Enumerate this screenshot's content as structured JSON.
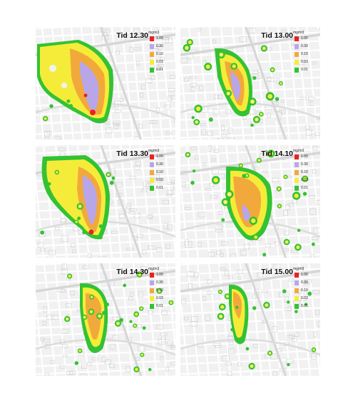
{
  "legend": {
    "unit": "mg/m3",
    "classes": [
      {
        "value": "1.00",
        "color": "#e8231f"
      },
      {
        "value": "0.30",
        "color": "#b8a6e8"
      },
      {
        "value": "0.10",
        "color": "#f2a93b"
      },
      {
        "value": "0.03",
        "color": "#f5ec3a"
      },
      {
        "value": "0.01",
        "color": "#33c233"
      }
    ]
  },
  "panels": [
    {
      "title": "Tid 12.30"
    },
    {
      "title": "Tid 13.00"
    },
    {
      "title": "Tid 13.30"
    },
    {
      "title": "Tid 14.10"
    },
    {
      "title": "Tid 14.30"
    },
    {
      "title": "Tid 15.00"
    }
  ]
}
